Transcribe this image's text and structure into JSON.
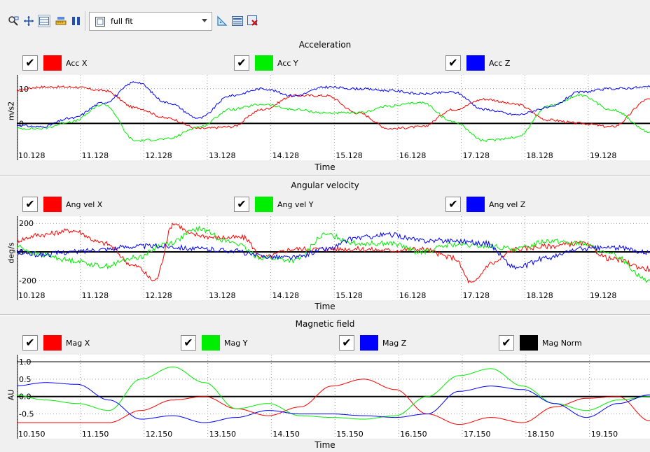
{
  "toolbar": {
    "zoom_combo": {
      "value": "full fit"
    },
    "icons": [
      "zoom-region-icon",
      "pan-icon",
      "table-view-icon",
      "ruler-icon",
      "columns-icon",
      "combo-fit-icon",
      "triangle-icon",
      "settings-icon",
      "close-red-icon"
    ]
  },
  "colors": {
    "red": "#ff0000",
    "green": "#00ee00",
    "blue": "#0000ff",
    "black": "#000000"
  },
  "chart_data": [
    {
      "type": "line",
      "title": "Acceleration",
      "xlabel": "Time",
      "ylabel": "m/s2",
      "x_ticks": [
        "10.128",
        "11.128",
        "12.128",
        "13.128",
        "14.128",
        "15.128",
        "16.128",
        "17.128",
        "18.128",
        "19.128"
      ],
      "y_ticks": [
        "10",
        "0"
      ],
      "ylim": [
        -7,
        14
      ],
      "xlim": [
        10.128,
        20.1
      ],
      "series": [
        {
          "name": "Acc X",
          "color": "#ff0000",
          "checked": true,
          "x": [
            10.1,
            10.5,
            11.0,
            11.5,
            12.0,
            12.5,
            13.0,
            13.5,
            14.0,
            14.5,
            15.0,
            15.5,
            16.0,
            16.5,
            17.0,
            17.5,
            18.0,
            18.5,
            19.0,
            19.5,
            20.1
          ],
          "y": [
            9.5,
            10.5,
            10.5,
            9.5,
            4.5,
            1.5,
            -1.5,
            -1.0,
            4.0,
            8.0,
            8.0,
            3.0,
            -1.5,
            -1.0,
            4.0,
            7.0,
            5.5,
            1.0,
            0.0,
            -1.0,
            7.0
          ]
        },
        {
          "name": "Acc Y",
          "color": "#00ee00",
          "checked": true,
          "x": [
            10.1,
            10.5,
            11.0,
            11.5,
            12.0,
            12.5,
            13.0,
            13.5,
            14.0,
            14.5,
            15.0,
            15.5,
            16.0,
            16.5,
            17.0,
            17.5,
            18.0,
            18.5,
            19.0,
            19.5,
            20.1
          ],
          "y": [
            -1.5,
            -1.5,
            0.5,
            5.5,
            -5.0,
            -4.5,
            -1.0,
            4.0,
            5.5,
            4.0,
            3.0,
            3.0,
            5.0,
            6.0,
            0.5,
            -5.0,
            -4.0,
            5.0,
            8.0,
            4.0,
            -2.5
          ]
        },
        {
          "name": "Acc Z",
          "color": "#0000ff",
          "checked": true,
          "x": [
            10.1,
            10.5,
            11.0,
            11.5,
            12.0,
            12.5,
            13.0,
            13.5,
            14.0,
            14.5,
            15.0,
            15.5,
            16.0,
            16.5,
            17.0,
            17.5,
            18.0,
            18.5,
            19.0,
            19.5,
            20.1
          ],
          "y": [
            -0.5,
            -1.0,
            1.5,
            6.0,
            12.0,
            6.0,
            1.5,
            8.0,
            10.0,
            8.0,
            10.5,
            10.0,
            9.5,
            8.5,
            9.0,
            4.0,
            2.5,
            4.5,
            9.0,
            10.0,
            10.5
          ]
        }
      ]
    },
    {
      "type": "line",
      "title": "Angular velocity",
      "xlabel": "Time",
      "ylabel": "deg/s",
      "x_ticks": [
        "10.128",
        "11.128",
        "12.128",
        "13.128",
        "14.128",
        "15.128",
        "16.128",
        "17.128",
        "18.128",
        "19.128"
      ],
      "y_ticks": [
        "200",
        "0",
        "-200"
      ],
      "ylim": [
        -250,
        250
      ],
      "xlim": [
        10.128,
        20.1
      ],
      "series": [
        {
          "name": "Ang vel X",
          "color": "#ff0000",
          "checked": true,
          "x": [
            10.1,
            10.5,
            11.0,
            11.5,
            12.0,
            12.3,
            12.6,
            12.9,
            13.3,
            13.7,
            14.0,
            14.5,
            15.0,
            15.5,
            16.0,
            16.5,
            17.0,
            17.3,
            17.6,
            18.0,
            18.5,
            19.0,
            19.5,
            20.1
          ],
          "y": [
            80,
            120,
            150,
            60,
            -100,
            -200,
            200,
            120,
            100,
            100,
            -40,
            20,
            20,
            20,
            10,
            20,
            -40,
            -220,
            -80,
            20,
            40,
            60,
            -50,
            -120
          ]
        },
        {
          "name": "Ang vel Y",
          "color": "#00ee00",
          "checked": true,
          "x": [
            10.1,
            10.5,
            11.0,
            11.5,
            12.0,
            12.5,
            13.0,
            13.5,
            14.0,
            14.5,
            15.0,
            15.5,
            16.0,
            16.5,
            17.0,
            17.5,
            18.0,
            18.5,
            19.0,
            19.5,
            20.1
          ],
          "y": [
            40,
            -20,
            -60,
            -100,
            -40,
            60,
            160,
            70,
            -40,
            -60,
            120,
            60,
            60,
            0,
            50,
            40,
            20,
            80,
            60,
            -20,
            -200
          ]
        },
        {
          "name": "Ang vel Z",
          "color": "#0000ff",
          "checked": true,
          "x": [
            10.1,
            10.5,
            11.0,
            11.5,
            12.0,
            12.5,
            13.0,
            13.5,
            14.0,
            14.5,
            15.0,
            15.5,
            16.0,
            16.5,
            17.0,
            17.5,
            18.0,
            18.5,
            19.0,
            19.5,
            20.1
          ],
          "y": [
            0,
            -20,
            0,
            20,
            40,
            40,
            20,
            10,
            -30,
            -40,
            20,
            100,
            120,
            80,
            80,
            60,
            -110,
            -40,
            20,
            30,
            0
          ]
        }
      ]
    },
    {
      "type": "line",
      "title": "Magnetic field",
      "xlabel": "Time",
      "ylabel": "AU",
      "x_ticks": [
        "10.150",
        "11.150",
        "12.150",
        "13.150",
        "14.150",
        "15.150",
        "16.150",
        "17.150",
        "18.150",
        "19.150"
      ],
      "y_ticks": [
        "1.0",
        "0.5",
        "0.0",
        "-0.5"
      ],
      "ylim": [
        -0.85,
        1.2
      ],
      "xlim": [
        10.15,
        20.1
      ],
      "series": [
        {
          "name": "Mag X",
          "color": "#ff0000",
          "checked": true,
          "x": [
            10.1,
            10.6,
            11.1,
            11.6,
            12.1,
            12.6,
            13.1,
            13.6,
            14.1,
            14.6,
            15.1,
            15.6,
            16.1,
            16.6,
            17.1,
            17.6,
            18.1,
            18.6,
            19.1,
            19.6,
            20.1
          ],
          "y": [
            -0.75,
            -0.75,
            -0.75,
            -0.75,
            -0.4,
            -0.1,
            0.0,
            -0.35,
            -0.55,
            -0.3,
            0.3,
            0.5,
            0.2,
            -0.5,
            -0.8,
            -0.6,
            -0.75,
            -0.3,
            -0.05,
            0.0,
            -0.7
          ]
        },
        {
          "name": "Mag Y",
          "color": "#00ee00",
          "checked": true,
          "x": [
            10.1,
            10.6,
            11.1,
            11.6,
            12.1,
            12.6,
            13.1,
            13.6,
            14.1,
            14.6,
            15.1,
            15.6,
            16.1,
            16.6,
            17.1,
            17.6,
            18.1,
            18.6,
            19.1,
            19.6,
            20.1
          ],
          "y": [
            0.05,
            -0.1,
            -0.2,
            -0.4,
            0.5,
            0.85,
            0.4,
            -0.35,
            -0.2,
            -0.55,
            -0.6,
            -0.65,
            -0.55,
            0.0,
            0.6,
            0.8,
            0.3,
            -0.2,
            -0.4,
            -0.1,
            0.0
          ]
        },
        {
          "name": "Mag Z",
          "color": "#0000ff",
          "checked": true,
          "x": [
            10.1,
            10.6,
            11.1,
            11.6,
            12.1,
            12.6,
            13.1,
            13.6,
            14.1,
            14.6,
            15.1,
            15.6,
            16.1,
            16.6,
            17.1,
            17.6,
            18.1,
            18.6,
            19.1,
            19.6,
            20.1
          ],
          "y": [
            0.3,
            0.4,
            0.35,
            -0.1,
            -0.65,
            -0.55,
            -0.75,
            -0.6,
            -0.4,
            -0.5,
            -0.5,
            -0.55,
            -0.6,
            -0.5,
            0.15,
            0.3,
            0.2,
            -0.2,
            -0.6,
            -0.2,
            0.05
          ]
        },
        {
          "name": "Mag Norm",
          "color": "#000000",
          "checked": true,
          "x": [
            10.1,
            11.1,
            12.1,
            13.1,
            14.1,
            15.1,
            16.1,
            17.1,
            18.1,
            19.1,
            20.1
          ],
          "y": [
            1.0,
            1.0,
            1.0,
            1.0,
            1.0,
            1.0,
            1.0,
            1.0,
            1.0,
            1.0,
            1.0
          ]
        }
      ]
    }
  ]
}
